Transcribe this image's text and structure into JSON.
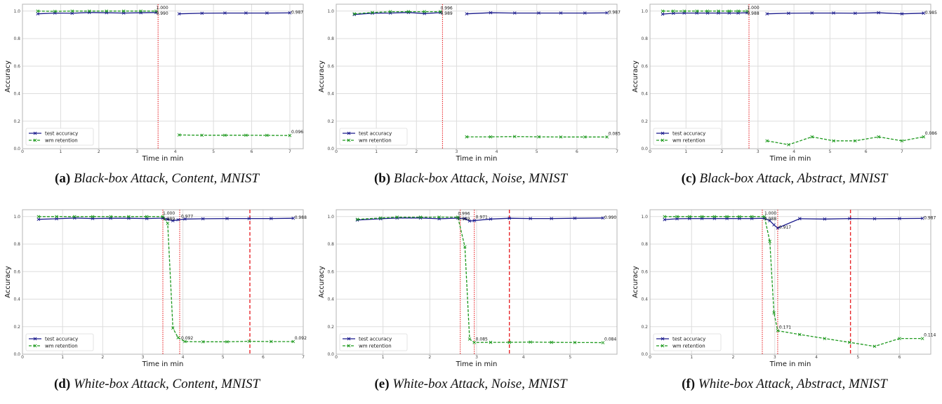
{
  "colors": {
    "test": "#1a1a8c",
    "wm": "#1f9a1f",
    "vline": "#e8262a",
    "grid": "#dddddd"
  },
  "chart_data": [
    {
      "id": "a",
      "type": "line",
      "caption": {
        "label": "(a)",
        "text": "Black-box Attack, Content, MNIST"
      },
      "xlabel": "Time in min",
      "ylabel": "Accuracy",
      "xlim": [
        0,
        7.35
      ],
      "ylim": [
        0,
        1.05
      ],
      "xticks": [
        0,
        1,
        2,
        3,
        4,
        5,
        6,
        7
      ],
      "yticks": [
        0.0,
        0.2,
        0.4,
        0.6,
        0.8,
        1.0
      ],
      "legend": {
        "position": "lower-left"
      },
      "vlines": [
        {
          "x": 3.55,
          "style": "dotted"
        }
      ],
      "series": [
        {
          "name": "test accuracy",
          "segments": [
            {
              "x": [
                0.4,
                0.85,
                1.3,
                1.75,
                2.2,
                2.65,
                3.1,
                3.5
              ],
              "y": [
                0.98,
                0.986,
                0.984,
                0.99,
                0.988,
                0.986,
                0.988,
                0.99
              ]
            },
            {
              "x": [
                4.1,
                4.7,
                5.3,
                5.85,
                6.4,
                7.0
              ],
              "y": [
                0.98,
                0.984,
                0.986,
                0.986,
                0.986,
                0.987
              ]
            }
          ]
        },
        {
          "name": "wm retention",
          "segments": [
            {
              "x": [
                0.4,
                0.85,
                1.3,
                1.75,
                2.2,
                2.65,
                3.1,
                3.5
              ],
              "y": [
                1.0,
                0.998,
                1.0,
                1.0,
                1.0,
                1.0,
                1.0,
                1.0
              ]
            },
            {
              "x": [
                4.1,
                4.7,
                5.3,
                5.85,
                6.4,
                7.0
              ],
              "y": [
                0.1,
                0.098,
                0.098,
                0.098,
                0.097,
                0.096
              ]
            }
          ]
        }
      ],
      "annotations": [
        {
          "x": 3.5,
          "y": 1.0,
          "text": "1.000",
          "pos": "above"
        },
        {
          "x": 3.5,
          "y": 0.99,
          "text": "0.990",
          "pos": "below"
        },
        {
          "x": 7.0,
          "y": 0.987,
          "text": "0.987",
          "pos": "right"
        },
        {
          "x": 7.0,
          "y": 0.096,
          "text": "0.096",
          "pos": "rightup"
        }
      ]
    },
    {
      "id": "b",
      "type": "line",
      "caption": {
        "label": "(b)",
        "text": "Black-box Attack, Noise, MNIST"
      },
      "xlabel": "Time in min",
      "ylabel": "Accuracy",
      "xlim": [
        0,
        7.0
      ],
      "ylim": [
        0,
        1.05
      ],
      "xticks": [
        0,
        1,
        2,
        3,
        4,
        5,
        6,
        7
      ],
      "yticks": [
        0.0,
        0.2,
        0.4,
        0.6,
        0.8,
        1.0
      ],
      "legend": {
        "position": "lower-left"
      },
      "vlines": [
        {
          "x": 2.65,
          "style": "dotted"
        }
      ],
      "series": [
        {
          "name": "test accuracy",
          "segments": [
            {
              "x": [
                0.45,
                0.9,
                1.35,
                1.8,
                2.2,
                2.6
              ],
              "y": [
                0.975,
                0.985,
                0.986,
                0.99,
                0.982,
                0.989
              ]
            },
            {
              "x": [
                3.25,
                3.85,
                4.45,
                5.05,
                5.6,
                6.2,
                6.75
              ],
              "y": [
                0.98,
                0.988,
                0.986,
                0.986,
                0.986,
                0.986,
                0.987
              ]
            }
          ]
        },
        {
          "name": "wm retention",
          "segments": [
            {
              "x": [
                0.45,
                0.9,
                1.35,
                1.8,
                2.2,
                2.6
              ],
              "y": [
                0.98,
                0.99,
                0.996,
                0.996,
                0.996,
                0.996
              ]
            },
            {
              "x": [
                3.25,
                3.85,
                4.45,
                5.05,
                5.6,
                6.2,
                6.75
              ],
              "y": [
                0.086,
                0.086,
                0.088,
                0.086,
                0.085,
                0.085,
                0.085
              ]
            }
          ]
        }
      ],
      "annotations": [
        {
          "x": 2.6,
          "y": 0.996,
          "text": "0.996",
          "pos": "above"
        },
        {
          "x": 2.6,
          "y": 0.989,
          "text": "0.989",
          "pos": "below"
        },
        {
          "x": 6.75,
          "y": 0.987,
          "text": "0.987",
          "pos": "right"
        },
        {
          "x": 6.75,
          "y": 0.085,
          "text": "0.085",
          "pos": "rightup"
        }
      ]
    },
    {
      "id": "c",
      "type": "line",
      "caption": {
        "label": "(c)",
        "text": "Black-box Attack, Abstract, MNIST"
      },
      "xlabel": "Time in min",
      "ylabel": "Accuracy",
      "xlim": [
        0,
        7.8
      ],
      "ylim": [
        0,
        1.05
      ],
      "xticks": [
        0,
        1,
        2,
        3,
        4,
        5,
        6,
        7
      ],
      "yticks": [
        0.0,
        0.2,
        0.4,
        0.6,
        0.8,
        1.0
      ],
      "legend": {
        "position": "lower-left"
      },
      "vlines": [
        {
          "x": 2.75,
          "style": "dotted"
        }
      ],
      "series": [
        {
          "name": "test accuracy",
          "segments": [
            {
              "x": [
                0.35,
                0.65,
                0.95,
                1.3,
                1.6,
                1.9,
                2.2,
                2.45,
                2.7
              ],
              "y": [
                0.978,
                0.984,
                0.986,
                0.986,
                0.986,
                0.986,
                0.986,
                0.986,
                0.988
              ]
            },
            {
              "x": [
                3.25,
                3.85,
                4.5,
                5.1,
                5.7,
                6.35,
                7.0,
                7.6
              ],
              "y": [
                0.98,
                0.984,
                0.986,
                0.986,
                0.984,
                0.988,
                0.98,
                0.985
              ]
            }
          ]
        },
        {
          "name": "wm retention",
          "segments": [
            {
              "x": [
                0.35,
                0.65,
                0.95,
                1.3,
                1.6,
                1.9,
                2.2,
                2.45,
                2.7
              ],
              "y": [
                1.0,
                1.0,
                1.0,
                1.0,
                1.0,
                1.0,
                1.0,
                1.0,
                1.0
              ]
            },
            {
              "x": [
                3.25,
                3.85,
                4.5,
                5.1,
                5.7,
                6.35,
                7.0,
                7.6
              ],
              "y": [
                0.057,
                0.029,
                0.086,
                0.057,
                0.057,
                0.086,
                0.057,
                0.086
              ]
            }
          ]
        }
      ],
      "annotations": [
        {
          "x": 2.7,
          "y": 1.0,
          "text": "1.000",
          "pos": "above"
        },
        {
          "x": 2.7,
          "y": 0.988,
          "text": "0.988",
          "pos": "below"
        },
        {
          "x": 7.6,
          "y": 0.985,
          "text": "0.985",
          "pos": "right"
        },
        {
          "x": 7.6,
          "y": 0.086,
          "text": "0.086",
          "pos": "rightup"
        }
      ]
    },
    {
      "id": "d",
      "type": "line",
      "caption": {
        "label": "(d)",
        "text": "White-box Attack, Content, MNIST"
      },
      "xlabel": "Time in min",
      "ylabel": "Accuracy",
      "xlim": [
        0,
        7.0
      ],
      "ylim": [
        0,
        1.05
      ],
      "xticks": [
        0,
        1,
        2,
        3,
        4,
        5,
        6,
        7
      ],
      "yticks": [
        0.0,
        0.2,
        0.4,
        0.6,
        0.8,
        1.0
      ],
      "legend": {
        "position": "lower-left"
      },
      "vlines": [
        {
          "x": 3.5,
          "style": "dotted"
        },
        {
          "x": 3.92,
          "style": "dotted"
        },
        {
          "x": 5.67,
          "style": "dashed"
        }
      ],
      "series": [
        {
          "name": "test accuracy",
          "segments": [
            {
              "x": [
                0.4,
                0.85,
                1.3,
                1.75,
                2.2,
                2.65,
                3.1,
                3.5,
                3.62,
                3.75,
                3.88,
                4.05,
                4.5,
                5.1,
                5.65,
                6.2,
                6.75
              ],
              "y": [
                0.98,
                0.984,
                0.99,
                0.986,
                0.988,
                0.988,
                0.986,
                0.989,
                0.98,
                0.97,
                0.977,
                0.982,
                0.984,
                0.986,
                0.986,
                0.986,
                0.988
              ]
            }
          ]
        },
        {
          "name": "wm retention",
          "segments": [
            {
              "x": [
                0.4,
                0.85,
                1.3,
                1.75,
                2.2,
                2.65,
                3.1,
                3.5,
                3.62,
                3.75,
                3.88,
                4.05,
                4.5,
                5.1,
                5.65,
                6.2,
                6.75
              ],
              "y": [
                1.0,
                1.0,
                1.0,
                1.0,
                1.0,
                1.0,
                1.0,
                1.0,
                0.95,
                0.19,
                0.12,
                0.092,
                0.09,
                0.09,
                0.094,
                0.092,
                0.092
              ]
            }
          ]
        }
      ],
      "annotations": [
        {
          "x": 3.5,
          "y": 1.0,
          "text": "1.000",
          "pos": "above"
        },
        {
          "x": 3.5,
          "y": 0.989,
          "text": "0.989",
          "pos": "below"
        },
        {
          "x": 3.92,
          "y": 0.977,
          "text": "0.977",
          "pos": "rightup"
        },
        {
          "x": 3.92,
          "y": 0.092,
          "text": "0.092",
          "pos": "rightup"
        },
        {
          "x": 6.75,
          "y": 0.988,
          "text": "0.988",
          "pos": "right"
        },
        {
          "x": 6.75,
          "y": 0.092,
          "text": "0.092",
          "pos": "rightup"
        }
      ]
    },
    {
      "id": "e",
      "type": "line",
      "caption": {
        "label": "(e)",
        "text": "White-box Attack, Noise, MNIST"
      },
      "xlabel": "Time in min",
      "ylabel": "Accuracy",
      "xlim": [
        0,
        6.0
      ],
      "ylim": [
        0,
        1.05
      ],
      "xticks": [
        0,
        1,
        2,
        3,
        4,
        5
      ],
      "yticks": [
        0.0,
        0.2,
        0.4,
        0.6,
        0.8,
        1.0
      ],
      "legend": {
        "position": "lower-left"
      },
      "vlines": [
        {
          "x": 2.65,
          "style": "dotted"
        },
        {
          "x": 2.95,
          "style": "dotted"
        },
        {
          "x": 3.7,
          "style": "dashed"
        }
      ],
      "series": [
        {
          "name": "test accuracy",
          "segments": [
            {
              "x": [
                0.45,
                0.95,
                1.3,
                1.8,
                2.2,
                2.6,
                2.75,
                2.85,
                2.95,
                3.3,
                3.7,
                4.15,
                4.6,
                5.1,
                5.7
              ],
              "y": [
                0.975,
                0.984,
                0.99,
                0.99,
                0.984,
                0.989,
                0.985,
                0.968,
                0.971,
                0.982,
                0.988,
                0.986,
                0.986,
                0.988,
                0.99
              ]
            }
          ]
        },
        {
          "name": "wm retention",
          "segments": [
            {
              "x": [
                0.45,
                0.95,
                1.3,
                1.8,
                2.2,
                2.6,
                2.75,
                2.85,
                2.95,
                3.3,
                3.7,
                4.15,
                4.6,
                5.1,
                5.7
              ],
              "y": [
                0.98,
                0.99,
                0.996,
                0.996,
                0.996,
                0.996,
                0.78,
                0.11,
                0.085,
                0.086,
                0.086,
                0.088,
                0.086,
                0.085,
                0.084
              ]
            }
          ]
        }
      ],
      "annotations": [
        {
          "x": 2.6,
          "y": 0.996,
          "text": "0.996",
          "pos": "above"
        },
        {
          "x": 2.6,
          "y": 0.989,
          "text": "0.989",
          "pos": "below"
        },
        {
          "x": 2.95,
          "y": 0.971,
          "text": "0.971",
          "pos": "rightup"
        },
        {
          "x": 2.95,
          "y": 0.085,
          "text": "0.085",
          "pos": "rightup"
        },
        {
          "x": 5.7,
          "y": 0.99,
          "text": "0.990",
          "pos": "right"
        },
        {
          "x": 5.7,
          "y": 0.084,
          "text": "0.084",
          "pos": "rightup"
        }
      ]
    },
    {
      "id": "f",
      "type": "line",
      "caption": {
        "label": "(f)",
        "text": "White-box Attack, Abstract, MNIST"
      },
      "xlabel": "Time in min",
      "ylabel": "Accuracy",
      "xlim": [
        0,
        6.75
      ],
      "ylim": [
        0,
        1.05
      ],
      "xticks": [
        0,
        1,
        2,
        3,
        4,
        5,
        6
      ],
      "yticks": [
        0.0,
        0.2,
        0.4,
        0.6,
        0.8,
        1.0
      ],
      "legend": {
        "position": "lower-left"
      },
      "vlines": [
        {
          "x": 2.7,
          "style": "dotted"
        },
        {
          "x": 3.07,
          "style": "dotted"
        },
        {
          "x": 4.82,
          "style": "dashed"
        }
      ],
      "series": [
        {
          "name": "test accuracy",
          "segments": [
            {
              "x": [
                0.35,
                0.65,
                0.95,
                1.25,
                1.55,
                1.85,
                2.15,
                2.45,
                2.75,
                2.88,
                2.98,
                3.07,
                3.6,
                4.2,
                4.8,
                5.4,
                6.0,
                6.55
              ],
              "y": [
                0.978,
                0.984,
                0.986,
                0.986,
                0.986,
                0.986,
                0.986,
                0.986,
                0.988,
                0.97,
                0.94,
                0.917,
                0.985,
                0.982,
                0.986,
                0.984,
                0.986,
                0.987
              ]
            }
          ]
        },
        {
          "name": "wm retention",
          "segments": [
            {
              "x": [
                0.35,
                0.65,
                0.95,
                1.25,
                1.55,
                1.85,
                2.15,
                2.45,
                2.75,
                2.88,
                2.98,
                3.07,
                3.6,
                4.2,
                4.8,
                5.4,
                6.0,
                6.55
              ],
              "y": [
                1.0,
                1.0,
                1.0,
                1.0,
                1.0,
                1.0,
                1.0,
                1.0,
                1.0,
                0.82,
                0.3,
                0.171,
                0.143,
                0.114,
                0.086,
                0.057,
                0.114,
                0.114
              ]
            }
          ]
        }
      ],
      "annotations": [
        {
          "x": 2.75,
          "y": 1.0,
          "text": "1.000",
          "pos": "above"
        },
        {
          "x": 2.75,
          "y": 0.988,
          "text": "0.988",
          "pos": "below"
        },
        {
          "x": 3.07,
          "y": 0.917,
          "text": "0.917",
          "pos": "right"
        },
        {
          "x": 3.07,
          "y": 0.171,
          "text": "0.171",
          "pos": "rightup"
        },
        {
          "x": 6.55,
          "y": 0.987,
          "text": "0.987",
          "pos": "right"
        },
        {
          "x": 6.55,
          "y": 0.114,
          "text": "0.114",
          "pos": "rightup"
        }
      ]
    }
  ]
}
